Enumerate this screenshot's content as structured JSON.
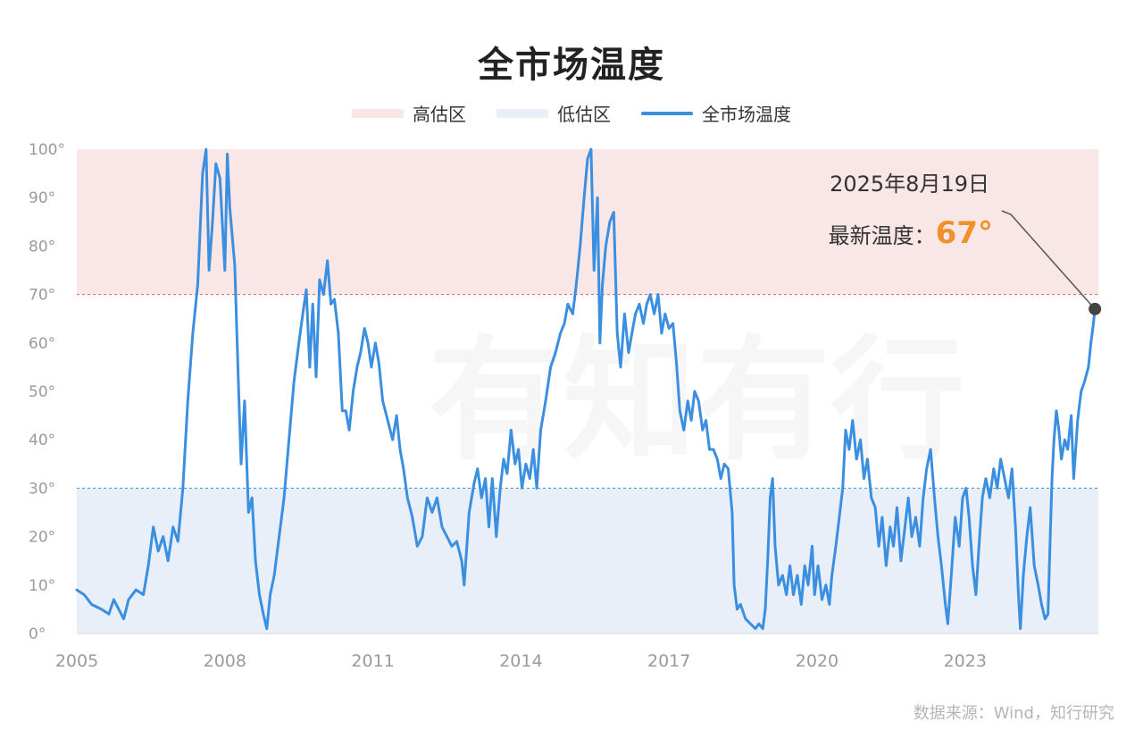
{
  "title": "全市场温度",
  "legend": [
    {
      "label": "高估区",
      "color": "#f8e7e6",
      "kind": "band"
    },
    {
      "label": "低估区",
      "color": "#e9eff8",
      "kind": "band"
    },
    {
      "label": "全市场温度",
      "color": "#3b8fe0",
      "kind": "line"
    }
  ],
  "annotation": {
    "date": "2025年8月19日",
    "label": "最新温度：",
    "value": "67°",
    "value_color": "#f0902b"
  },
  "watermark": "有知有行",
  "source": "数据来源：Wind，知行研究",
  "chart_data": {
    "type": "line",
    "title": "全市场温度",
    "xlim": [
      2005.0,
      2025.7
    ],
    "ylim": [
      0,
      100
    ],
    "x_ticks": [
      2005,
      2008,
      2011,
      2014,
      2017,
      2020,
      2023
    ],
    "x_tick_labels": [
      "2005",
      "2008",
      "2011",
      "2014",
      "2017",
      "2020",
      "2023"
    ],
    "y_ticks": [
      0,
      10,
      20,
      30,
      40,
      50,
      60,
      70,
      80,
      90,
      100
    ],
    "y_tick_labels": [
      "0°",
      "10°",
      "20°",
      "30°",
      "40°",
      "50°",
      "60°",
      "70°",
      "80°",
      "90°",
      "100°"
    ],
    "bands": [
      {
        "name": "高估区",
        "from": 70,
        "to": 100,
        "color": "#f8e7e6",
        "line_color": "#e06060"
      },
      {
        "name": "低估区",
        "from": 0,
        "to": 30,
        "color": "#e9eff8",
        "line_color": "#3b8fe0"
      }
    ],
    "grid": false,
    "legend_position": "top-center",
    "series": [
      {
        "name": "全市场温度",
        "color": "#3b8fe0",
        "points": [
          [
            2005.0,
            9
          ],
          [
            2005.15,
            8
          ],
          [
            2005.3,
            6
          ],
          [
            2005.5,
            5
          ],
          [
            2005.65,
            4
          ],
          [
            2005.75,
            7
          ],
          [
            2005.85,
            5
          ],
          [
            2005.95,
            3
          ],
          [
            2006.05,
            7
          ],
          [
            2006.2,
            9
          ],
          [
            2006.35,
            8
          ],
          [
            2006.45,
            14
          ],
          [
            2006.55,
            22
          ],
          [
            2006.65,
            17
          ],
          [
            2006.75,
            20
          ],
          [
            2006.85,
            15
          ],
          [
            2006.95,
            22
          ],
          [
            2007.05,
            19
          ],
          [
            2007.15,
            30
          ],
          [
            2007.25,
            48
          ],
          [
            2007.35,
            62
          ],
          [
            2007.45,
            72
          ],
          [
            2007.55,
            95
          ],
          [
            2007.62,
            100
          ],
          [
            2007.68,
            75
          ],
          [
            2007.75,
            85
          ],
          [
            2007.82,
            97
          ],
          [
            2007.9,
            94
          ],
          [
            2008.0,
            75
          ],
          [
            2008.05,
            99
          ],
          [
            2008.1,
            88
          ],
          [
            2008.15,
            82
          ],
          [
            2008.2,
            76
          ],
          [
            2008.28,
            50
          ],
          [
            2008.33,
            35
          ],
          [
            2008.4,
            48
          ],
          [
            2008.48,
            25
          ],
          [
            2008.55,
            28
          ],
          [
            2008.62,
            15
          ],
          [
            2008.7,
            8
          ],
          [
            2008.78,
            4
          ],
          [
            2008.85,
            1
          ],
          [
            2008.92,
            8
          ],
          [
            2009.0,
            12
          ],
          [
            2009.1,
            20
          ],
          [
            2009.2,
            28
          ],
          [
            2009.3,
            40
          ],
          [
            2009.4,
            52
          ],
          [
            2009.5,
            60
          ],
          [
            2009.58,
            66
          ],
          [
            2009.65,
            71
          ],
          [
            2009.72,
            55
          ],
          [
            2009.78,
            68
          ],
          [
            2009.85,
            53
          ],
          [
            2009.92,
            73
          ],
          [
            2010.0,
            70
          ],
          [
            2010.08,
            77
          ],
          [
            2010.15,
            68
          ],
          [
            2010.22,
            69
          ],
          [
            2010.3,
            62
          ],
          [
            2010.38,
            46
          ],
          [
            2010.45,
            46
          ],
          [
            2010.52,
            42
          ],
          [
            2010.6,
            50
          ],
          [
            2010.68,
            55
          ],
          [
            2010.75,
            58
          ],
          [
            2010.83,
            63
          ],
          [
            2010.9,
            60
          ],
          [
            2010.97,
            55
          ],
          [
            2011.05,
            60
          ],
          [
            2011.12,
            56
          ],
          [
            2011.2,
            48
          ],
          [
            2011.3,
            44
          ],
          [
            2011.4,
            40
          ],
          [
            2011.48,
            45
          ],
          [
            2011.55,
            38
          ],
          [
            2011.62,
            34
          ],
          [
            2011.7,
            28
          ],
          [
            2011.8,
            24
          ],
          [
            2011.9,
            18
          ],
          [
            2012.0,
            20
          ],
          [
            2012.1,
            28
          ],
          [
            2012.2,
            25
          ],
          [
            2012.3,
            28
          ],
          [
            2012.4,
            22
          ],
          [
            2012.5,
            20
          ],
          [
            2012.6,
            18
          ],
          [
            2012.7,
            19
          ],
          [
            2012.8,
            15
          ],
          [
            2012.85,
            10
          ],
          [
            2012.95,
            25
          ],
          [
            2013.05,
            31
          ],
          [
            2013.12,
            34
          ],
          [
            2013.2,
            28
          ],
          [
            2013.28,
            32
          ],
          [
            2013.35,
            22
          ],
          [
            2013.42,
            32
          ],
          [
            2013.5,
            20
          ],
          [
            2013.58,
            30
          ],
          [
            2013.65,
            36
          ],
          [
            2013.72,
            33
          ],
          [
            2013.8,
            42
          ],
          [
            2013.88,
            35
          ],
          [
            2013.95,
            38
          ],
          [
            2014.02,
            30
          ],
          [
            2014.1,
            35
          ],
          [
            2014.18,
            32
          ],
          [
            2014.25,
            38
          ],
          [
            2014.32,
            30
          ],
          [
            2014.4,
            42
          ],
          [
            2014.5,
            48
          ],
          [
            2014.6,
            55
          ],
          [
            2014.7,
            58
          ],
          [
            2014.8,
            62
          ],
          [
            2014.88,
            64
          ],
          [
            2014.95,
            68
          ],
          [
            2015.05,
            66
          ],
          [
            2015.12,
            72
          ],
          [
            2015.2,
            80
          ],
          [
            2015.28,
            90
          ],
          [
            2015.35,
            98
          ],
          [
            2015.42,
            100
          ],
          [
            2015.48,
            75
          ],
          [
            2015.55,
            90
          ],
          [
            2015.6,
            60
          ],
          [
            2015.65,
            72
          ],
          [
            2015.72,
            80
          ],
          [
            2015.8,
            85
          ],
          [
            2015.88,
            87
          ],
          [
            2015.95,
            62
          ],
          [
            2016.02,
            55
          ],
          [
            2016.1,
            66
          ],
          [
            2016.18,
            58
          ],
          [
            2016.25,
            62
          ],
          [
            2016.32,
            66
          ],
          [
            2016.4,
            68
          ],
          [
            2016.48,
            64
          ],
          [
            2016.55,
            68
          ],
          [
            2016.62,
            70
          ],
          [
            2016.7,
            66
          ],
          [
            2016.78,
            70
          ],
          [
            2016.85,
            62
          ],
          [
            2016.92,
            66
          ],
          [
            2017.0,
            63
          ],
          [
            2017.08,
            64
          ],
          [
            2017.15,
            56
          ],
          [
            2017.22,
            46
          ],
          [
            2017.3,
            42
          ],
          [
            2017.38,
            48
          ],
          [
            2017.45,
            44
          ],
          [
            2017.52,
            50
          ],
          [
            2017.6,
            48
          ],
          [
            2017.68,
            42
          ],
          [
            2017.75,
            44
          ],
          [
            2017.82,
            38
          ],
          [
            2017.9,
            38
          ],
          [
            2017.98,
            36
          ],
          [
            2018.05,
            32
          ],
          [
            2018.12,
            35
          ],
          [
            2018.2,
            34
          ],
          [
            2018.28,
            25
          ],
          [
            2018.32,
            10
          ],
          [
            2018.38,
            5
          ],
          [
            2018.45,
            6
          ],
          [
            2018.55,
            3
          ],
          [
            2018.65,
            2
          ],
          [
            2018.75,
            1
          ],
          [
            2018.82,
            2
          ],
          [
            2018.9,
            1
          ],
          [
            2018.95,
            5
          ],
          [
            2019.0,
            15
          ],
          [
            2019.05,
            28
          ],
          [
            2019.1,
            32
          ],
          [
            2019.15,
            18
          ],
          [
            2019.22,
            10
          ],
          [
            2019.3,
            12
          ],
          [
            2019.38,
            8
          ],
          [
            2019.45,
            14
          ],
          [
            2019.52,
            8
          ],
          [
            2019.6,
            12
          ],
          [
            2019.68,
            6
          ],
          [
            2019.75,
            14
          ],
          [
            2019.82,
            10
          ],
          [
            2019.9,
            18
          ],
          [
            2019.95,
            8
          ],
          [
            2020.02,
            14
          ],
          [
            2020.1,
            7
          ],
          [
            2020.18,
            10
          ],
          [
            2020.25,
            6
          ],
          [
            2020.3,
            12
          ],
          [
            2020.38,
            18
          ],
          [
            2020.45,
            24
          ],
          [
            2020.52,
            30
          ],
          [
            2020.58,
            42
          ],
          [
            2020.65,
            38
          ],
          [
            2020.72,
            44
          ],
          [
            2020.8,
            36
          ],
          [
            2020.88,
            40
          ],
          [
            2020.95,
            32
          ],
          [
            2021.02,
            36
          ],
          [
            2021.1,
            28
          ],
          [
            2021.18,
            26
          ],
          [
            2021.25,
            18
          ],
          [
            2021.32,
            24
          ],
          [
            2021.4,
            14
          ],
          [
            2021.48,
            22
          ],
          [
            2021.55,
            18
          ],
          [
            2021.62,
            26
          ],
          [
            2021.7,
            15
          ],
          [
            2021.78,
            22
          ],
          [
            2021.85,
            28
          ],
          [
            2021.92,
            20
          ],
          [
            2022.0,
            24
          ],
          [
            2022.08,
            18
          ],
          [
            2022.15,
            28
          ],
          [
            2022.22,
            34
          ],
          [
            2022.3,
            38
          ],
          [
            2022.38,
            28
          ],
          [
            2022.45,
            20
          ],
          [
            2022.52,
            14
          ],
          [
            2022.6,
            6
          ],
          [
            2022.65,
            2
          ],
          [
            2022.72,
            12
          ],
          [
            2022.8,
            24
          ],
          [
            2022.88,
            18
          ],
          [
            2022.95,
            28
          ],
          [
            2023.02,
            30
          ],
          [
            2023.08,
            24
          ],
          [
            2023.15,
            14
          ],
          [
            2023.22,
            8
          ],
          [
            2023.28,
            18
          ],
          [
            2023.35,
            28
          ],
          [
            2023.42,
            32
          ],
          [
            2023.5,
            28
          ],
          [
            2023.58,
            34
          ],
          [
            2023.65,
            30
          ],
          [
            2023.72,
            36
          ],
          [
            2023.8,
            32
          ],
          [
            2023.88,
            28
          ],
          [
            2023.95,
            34
          ],
          [
            2024.02,
            22
          ],
          [
            2024.08,
            8
          ],
          [
            2024.12,
            1
          ],
          [
            2024.18,
            12
          ],
          [
            2024.25,
            20
          ],
          [
            2024.32,
            26
          ],
          [
            2024.4,
            14
          ],
          [
            2024.48,
            10
          ],
          [
            2024.55,
            6
          ],
          [
            2024.62,
            3
          ],
          [
            2024.68,
            4
          ],
          [
            2024.72,
            18
          ],
          [
            2024.76,
            32
          ],
          [
            2024.8,
            40
          ],
          [
            2024.85,
            46
          ],
          [
            2024.9,
            42
          ],
          [
            2024.95,
            36
          ],
          [
            2025.02,
            40
          ],
          [
            2025.08,
            38
          ],
          [
            2025.15,
            45
          ],
          [
            2025.2,
            32
          ],
          [
            2025.28,
            44
          ],
          [
            2025.35,
            50
          ],
          [
            2025.42,
            52
          ],
          [
            2025.5,
            55
          ],
          [
            2025.55,
            60
          ],
          [
            2025.6,
            64
          ],
          [
            2025.63,
            67
          ]
        ]
      }
    ],
    "latest_point": {
      "x": 2025.63,
      "y": 67
    }
  }
}
